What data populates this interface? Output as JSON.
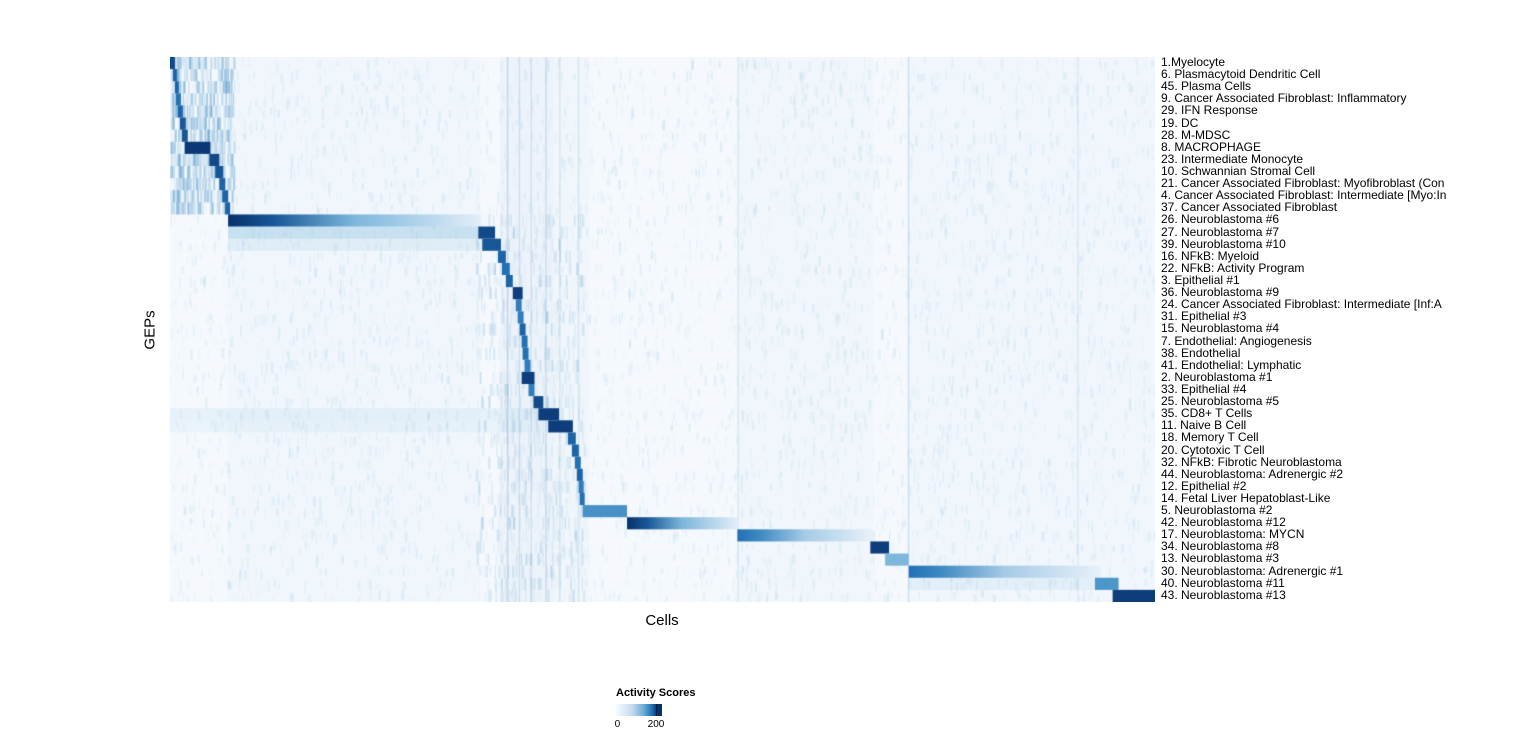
{
  "chart_data": {
    "type": "heatmap",
    "title": "",
    "xlabel": "Cells",
    "ylabel": "GEPs",
    "legend": {
      "title": "Activity Scores",
      "min": 0,
      "max": 200,
      "min_label": "0",
      "max_label": "200"
    },
    "colorscale": [
      "#f7fbff",
      "#c6dbef",
      "#6baed6",
      "#2171b5",
      "#08306b"
    ],
    "value_note": "peak 1.0 on a row block corresponds to an activity score of ~200",
    "rows": [
      {
        "label": "1.Myelocyte",
        "block": [
          0.0,
          0.005
        ],
        "peak": 0.9,
        "fade": false
      },
      {
        "label": "6. Plasmacytoid Dendritic Cell",
        "block": [
          0.003,
          0.007
        ],
        "peak": 0.8,
        "fade": false
      },
      {
        "label": "45. Plasma Cells",
        "block": [
          0.005,
          0.009
        ],
        "peak": 0.8,
        "fade": false
      },
      {
        "label": "9. Cancer Associated Fibroblast: Inflammatory",
        "block": [
          0.006,
          0.011
        ],
        "peak": 0.75,
        "fade": false
      },
      {
        "label": "29. IFN Response",
        "block": [
          0.008,
          0.013
        ],
        "peak": 0.8,
        "fade": false
      },
      {
        "label": "19. DC",
        "block": [
          0.01,
          0.016
        ],
        "peak": 0.85,
        "fade": false
      },
      {
        "label": "28. M-MDSC",
        "block": [
          0.012,
          0.018
        ],
        "peak": 0.85,
        "fade": false
      },
      {
        "label": "8. MACROPHAGE",
        "block": [
          0.015,
          0.041
        ],
        "peak": 0.97,
        "fade": false
      },
      {
        "label": "23. Intermediate Monocyte",
        "block": [
          0.04,
          0.05
        ],
        "peak": 0.9,
        "fade": false
      },
      {
        "label": "10. Schwannian Stromal Cell",
        "block": [
          0.046,
          0.054
        ],
        "peak": 0.85,
        "fade": false
      },
      {
        "label": "21. Cancer Associated Fibroblast: Myofibroblast (Con",
        "block": [
          0.05,
          0.056
        ],
        "peak": 0.8,
        "fade": false
      },
      {
        "label": "4. Cancer Associated Fibroblast: Intermediate [Myo:In",
        "block": [
          0.053,
          0.059
        ],
        "peak": 0.8,
        "fade": false
      },
      {
        "label": "37. Cancer Associated Fibroblast",
        "block": [
          0.056,
          0.061
        ],
        "peak": 0.8,
        "fade": false
      },
      {
        "label": "26. Neuroblastoma #6",
        "block": [
          0.059,
          0.315
        ],
        "peak": 1.0,
        "fade": true
      },
      {
        "label": "27. Neuroblastoma #7",
        "block": [
          0.313,
          0.33
        ],
        "peak": 0.9,
        "fade": false,
        "wash": [
          0.059,
          0.313,
          0.3
        ]
      },
      {
        "label": "39. Neuroblastoma #10",
        "block": [
          0.317,
          0.336
        ],
        "peak": 0.85,
        "fade": false,
        "wash": [
          0.059,
          0.313,
          0.12
        ]
      },
      {
        "label": "16. NFkB: Myeloid",
        "block": [
          0.333,
          0.341
        ],
        "peak": 0.8,
        "fade": false
      },
      {
        "label": "22. NFkB: Activity Program",
        "block": [
          0.337,
          0.345
        ],
        "peak": 0.75,
        "fade": false
      },
      {
        "label": "3. Epithelial #1",
        "block": [
          0.341,
          0.348
        ],
        "peak": 0.8,
        "fade": false
      },
      {
        "label": "36. Neuroblastoma #9",
        "block": [
          0.348,
          0.358
        ],
        "peak": 0.95,
        "fade": false
      },
      {
        "label": "24. Cancer Associated Fibroblast: Intermediate [Inf:A",
        "block": [
          0.351,
          0.357
        ],
        "peak": 0.7,
        "fade": false
      },
      {
        "label": "31. Epithelial #3",
        "block": [
          0.353,
          0.359
        ],
        "peak": 0.7,
        "fade": false
      },
      {
        "label": "15. Neuroblastoma #4",
        "block": [
          0.355,
          0.361
        ],
        "peak": 0.8,
        "fade": false
      },
      {
        "label": "7. Endothelial: Angiogenesis",
        "block": [
          0.357,
          0.363
        ],
        "peak": 0.75,
        "fade": false
      },
      {
        "label": "38. Endothelial",
        "block": [
          0.358,
          0.364
        ],
        "peak": 0.75,
        "fade": false
      },
      {
        "label": "41. Endothelial: Lymphatic",
        "block": [
          0.36,
          0.366
        ],
        "peak": 0.7,
        "fade": false
      },
      {
        "label": "2. Neuroblastoma #1",
        "block": [
          0.357,
          0.37
        ],
        "peak": 0.95,
        "fade": false
      },
      {
        "label": "33. Epithelial #4",
        "block": [
          0.364,
          0.37
        ],
        "peak": 0.7,
        "fade": false
      },
      {
        "label": "25. Neuroblastoma #5",
        "block": [
          0.369,
          0.379
        ],
        "peak": 0.9,
        "fade": false
      },
      {
        "label": "35. CD8+ T Cells",
        "block": [
          0.374,
          0.395
        ],
        "peak": 0.95,
        "fade": false,
        "wash": [
          0.0,
          0.374,
          0.1
        ]
      },
      {
        "label": "11. Naive B Cell",
        "block": [
          0.384,
          0.409
        ],
        "peak": 0.95,
        "fade": false,
        "wash": [
          0.0,
          0.384,
          0.08
        ]
      },
      {
        "label": "18. Memory T Cell",
        "block": [
          0.404,
          0.412
        ],
        "peak": 0.8,
        "fade": false
      },
      {
        "label": "20. Cytotoxic T Cell",
        "block": [
          0.408,
          0.415
        ],
        "peak": 0.8,
        "fade": false
      },
      {
        "label": "32. NFkB: Fibrotic Neuroblastoma",
        "block": [
          0.411,
          0.417
        ],
        "peak": 0.75,
        "fade": false
      },
      {
        "label": "44. Neuroblastoma: Adrenergic #2",
        "block": [
          0.413,
          0.419
        ],
        "peak": 0.8,
        "fade": false
      },
      {
        "label": "12. Epithelial #2",
        "block": [
          0.415,
          0.42
        ],
        "peak": 0.7,
        "fade": false
      },
      {
        "label": "14. Fetal Liver Hepatoblast-Like",
        "block": [
          0.416,
          0.421
        ],
        "peak": 0.75,
        "fade": false
      },
      {
        "label": "5. Neuroblastoma #2",
        "block": [
          0.419,
          0.464
        ],
        "peak": 0.62,
        "fade": false
      },
      {
        "label": "42. Neuroblastoma #12",
        "block": [
          0.464,
          0.576
        ],
        "peak": 1.0,
        "fade": true
      },
      {
        "label": "17. Neuroblastoma: MYCN",
        "block": [
          0.576,
          0.713
        ],
        "peak": 0.75,
        "fade": true
      },
      {
        "label": "34. Neuroblastoma #8",
        "block": [
          0.711,
          0.73
        ],
        "peak": 0.95,
        "fade": false
      },
      {
        "label": "13. Neuroblastoma #3",
        "block": [
          0.726,
          0.75
        ],
        "peak": 0.45,
        "fade": false
      },
      {
        "label": "30. Neuroblastoma: Adrenergic #1",
        "block": [
          0.75,
          0.945
        ],
        "peak": 0.75,
        "fade": true
      },
      {
        "label": "40. Neuroblastoma #11",
        "block": [
          0.939,
          0.963
        ],
        "peak": 0.6,
        "fade": false,
        "wash": [
          0.75,
          0.939,
          0.1
        ]
      },
      {
        "label": "43. Neuroblastoma #13",
        "block": [
          0.957,
          1.0
        ],
        "peak": 0.95,
        "fade": false
      }
    ],
    "background_bands": [
      {
        "start": 0.059,
        "end": 0.315,
        "alpha": 0.05
      },
      {
        "start": 0.335,
        "end": 0.39,
        "alpha": 0.1
      },
      {
        "start": 0.39,
        "end": 0.425,
        "alpha": 0.06
      },
      {
        "start": 0.576,
        "end": 0.714,
        "alpha": 0.06
      },
      {
        "start": 0.75,
        "end": 1.0,
        "alpha": 0.05
      }
    ],
    "column_lines": [
      {
        "x": 0.342,
        "alpha": 0.2
      },
      {
        "x": 0.354,
        "alpha": 0.15
      },
      {
        "x": 0.366,
        "alpha": 0.12
      },
      {
        "x": 0.381,
        "alpha": 0.16
      },
      {
        "x": 0.395,
        "alpha": 0.12
      },
      {
        "x": 0.414,
        "alpha": 0.12
      },
      {
        "x": 0.576,
        "alpha": 0.1
      },
      {
        "x": 0.749,
        "alpha": 0.18
      },
      {
        "x": 0.921,
        "alpha": 0.1
      }
    ],
    "texture_regions": [
      {
        "x0": 0.0,
        "x1": 0.065,
        "row0": 0,
        "row1": 13,
        "density": 70,
        "alpha": 0.3
      },
      {
        "x0": 0.31,
        "x1": 0.42,
        "row0": 13,
        "row1": 45,
        "density": 25,
        "alpha": 0.18
      }
    ]
  }
}
